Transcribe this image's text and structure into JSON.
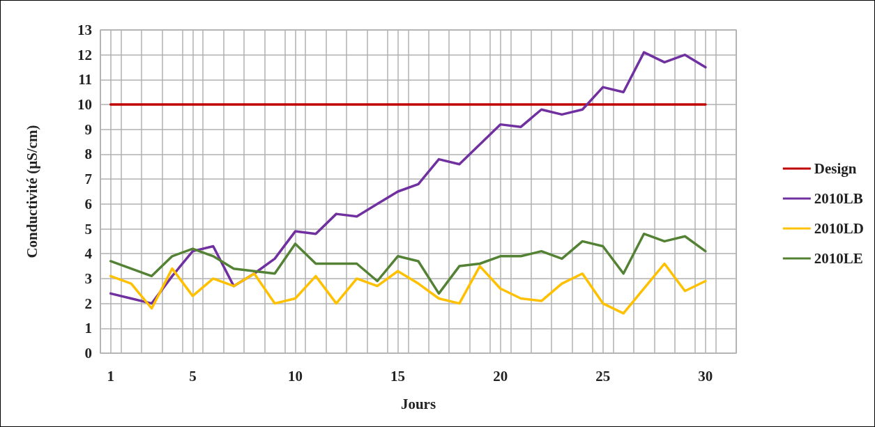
{
  "chart_data": {
    "type": "line",
    "xlabel": "Jours",
    "ylabel": "Conductivité (µS/cm)",
    "x": [
      1,
      2,
      3,
      4,
      5,
      6,
      7,
      8,
      9,
      10,
      11,
      12,
      13,
      14,
      15,
      16,
      17,
      18,
      19,
      20,
      21,
      22,
      23,
      24,
      25,
      26,
      27,
      28,
      29,
      30
    ],
    "series": [
      {
        "name": "Design",
        "color": "#c00000",
        "values": [
          10,
          10,
          10,
          10,
          10,
          10,
          10,
          10,
          10,
          10,
          10,
          10,
          10,
          10,
          10,
          10,
          10,
          10,
          10,
          10,
          10,
          10,
          10,
          10,
          10,
          10,
          10,
          10,
          10,
          10
        ]
      },
      {
        "name": "2010LB",
        "color": "#7030a0",
        "values": [
          2.4,
          2.2,
          2.0,
          3.1,
          4.1,
          4.3,
          2.7,
          3.2,
          3.8,
          4.9,
          4.8,
          5.6,
          5.5,
          6.0,
          6.5,
          6.8,
          7.8,
          7.6,
          8.4,
          9.2,
          9.1,
          9.8,
          9.6,
          9.8,
          10.7,
          10.5,
          12.1,
          11.7,
          12.0,
          11.5
        ]
      },
      {
        "name": "2010LD",
        "color": "#ffc000",
        "values": [
          3.1,
          2.8,
          1.8,
          3.4,
          2.3,
          3.0,
          2.7,
          3.2,
          2.0,
          2.2,
          3.1,
          2.0,
          3.0,
          2.7,
          3.3,
          2.8,
          2.2,
          2.0,
          3.5,
          2.6,
          2.2,
          2.1,
          2.8,
          3.2,
          2.0,
          1.6,
          2.6,
          3.6,
          2.5,
          2.9
        ]
      },
      {
        "name": "2010LE",
        "color": "#548235",
        "values": [
          3.7,
          3.4,
          3.1,
          3.9,
          4.2,
          3.9,
          3.4,
          3.3,
          3.2,
          4.4,
          3.6,
          3.6,
          3.6,
          2.9,
          3.9,
          3.7,
          2.4,
          3.5,
          3.6,
          3.9,
          3.9,
          4.1,
          3.8,
          4.5,
          4.3,
          3.2,
          4.8,
          4.5,
          4.7,
          4.1
        ]
      }
    ],
    "xlim": [
      0.5,
      31.5
    ],
    "xticks": [
      {
        "value": 0.5,
        "label": null
      },
      1,
      {
        "value": 1.5,
        "label": null
      },
      {
        "value": 2.5,
        "label": null
      },
      {
        "value": 3.5,
        "label": null
      },
      {
        "value": 4.5,
        "label": null
      },
      5,
      {
        "value": 5.5,
        "label": null
      },
      {
        "value": 6.5,
        "label": null
      },
      {
        "value": 7.5,
        "label": null
      },
      {
        "value": 8.5,
        "label": null
      },
      {
        "value": 9.5,
        "label": null
      },
      10,
      {
        "value": 10.5,
        "label": null
      },
      {
        "value": 11.5,
        "label": null
      },
      {
        "value": 12.5,
        "label": null
      },
      {
        "value": 13.5,
        "label": null
      },
      {
        "value": 14.5,
        "label": null
      },
      15,
      {
        "value": 15.5,
        "label": null
      },
      {
        "value": 16.5,
        "label": null
      },
      {
        "value": 17.5,
        "label": null
      },
      {
        "value": 18.5,
        "label": null
      },
      {
        "value": 19.5,
        "label": null
      },
      20,
      {
        "value": 20.5,
        "label": null
      },
      {
        "value": 21.5,
        "label": null
      },
      {
        "value": 22.5,
        "label": null
      },
      {
        "value": 23.5,
        "label": null
      },
      {
        "value": 24.5,
        "label": null
      },
      25,
      {
        "value": 25.5,
        "label": null
      },
      {
        "value": 26.5,
        "label": null
      },
      {
        "value": 27.5,
        "label": null
      },
      {
        "value": 28.5,
        "label": null
      },
      {
        "value": 29.5,
        "label": null
      },
      30,
      {
        "value": 30.5,
        "label": null
      },
      {
        "value": 31.5,
        "label": null
      }
    ],
    "ylim": [
      0,
      13
    ],
    "yticks": [
      0,
      1,
      2,
      3,
      4,
      5,
      6,
      7,
      8,
      9,
      10,
      11,
      12,
      13
    ],
    "grid": true,
    "legend": "right",
    "marker": "none",
    "line_style": "solid"
  }
}
